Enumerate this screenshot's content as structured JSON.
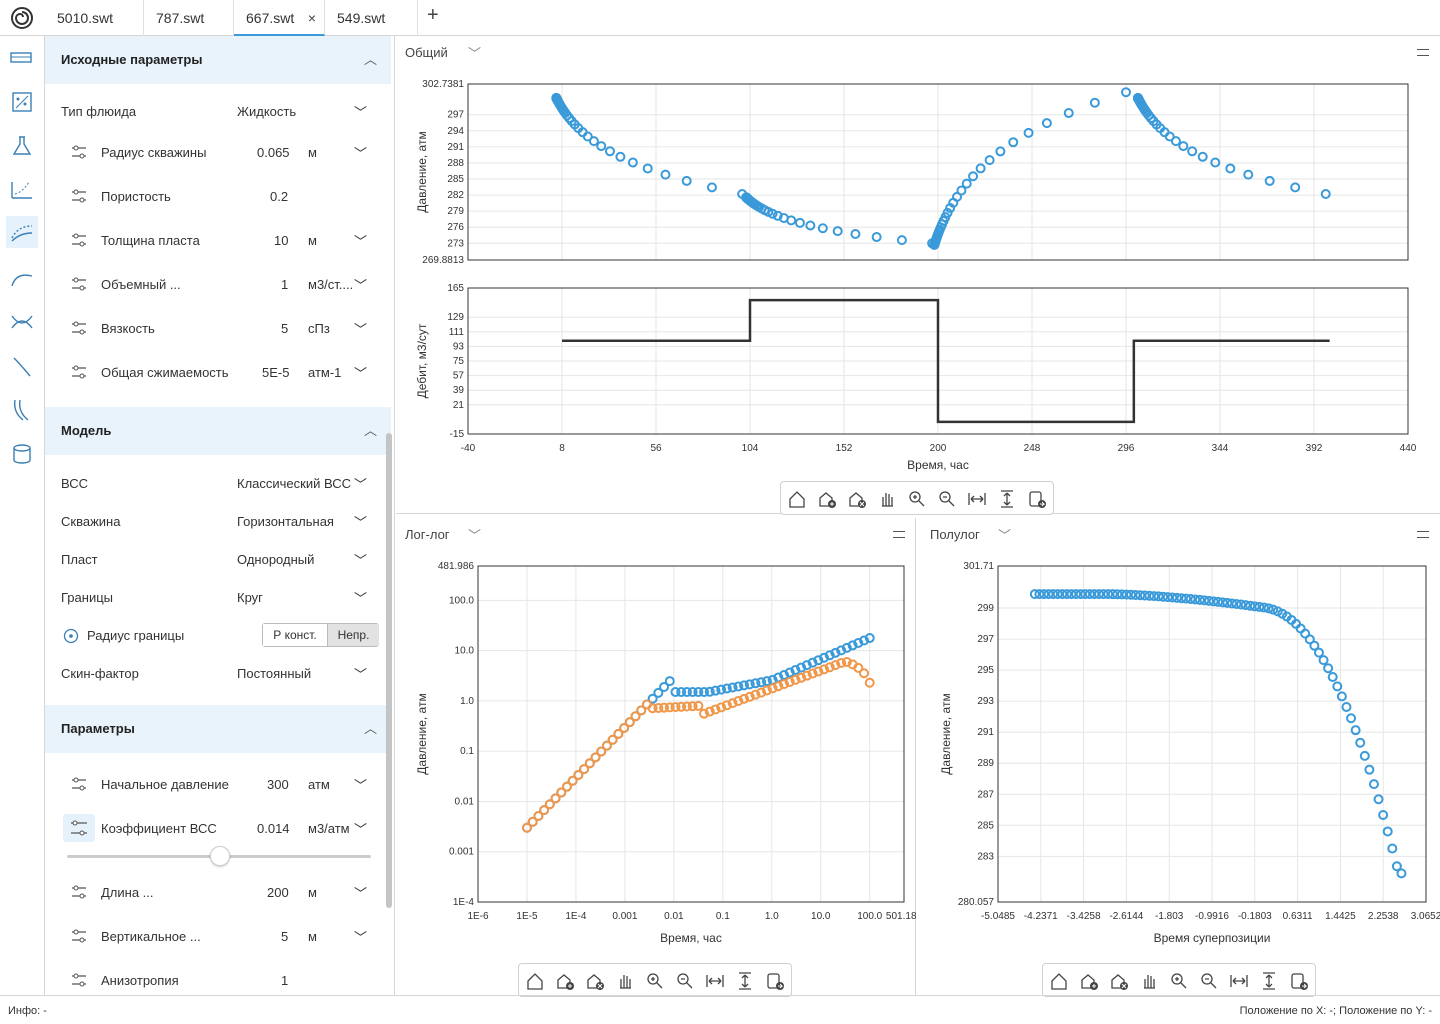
{
  "tabs": [
    {
      "label": "5010.swt"
    },
    {
      "label": "787.swt"
    },
    {
      "label": "667.swt",
      "close": "×"
    },
    {
      "label": "549.swt"
    }
  ],
  "add_tab": "+",
  "sidebar_icons": [
    "tank-icon",
    "grid-icon",
    "flask-icon",
    "scatter-icon",
    "curve-dots-icon",
    "decline-icon",
    "crossing-curves-icon",
    "line-icon",
    "wave-icon",
    "database-icon"
  ],
  "section1": {
    "title": "Исходные параметры",
    "fluid_type": {
      "label": "Тип флюида",
      "value": "Жидкость"
    },
    "rows": [
      {
        "label": "Радиус скважины",
        "value": "0.065",
        "unit": "м"
      },
      {
        "label": "Пористость",
        "value": "0.2",
        "unit": ""
      },
      {
        "label": "Толщина пласта",
        "value": "10",
        "unit": "м"
      },
      {
        "label": "Объемный ...",
        "value": "1",
        "unit": "м3/ст...."
      },
      {
        "label": "Вязкость",
        "value": "5",
        "unit": "сПз"
      },
      {
        "label": "Общая сжимаемость",
        "value": "5E-5",
        "unit": "атм-1"
      }
    ]
  },
  "section2": {
    "title": "Модель",
    "rows": [
      {
        "label": "ВСС",
        "value": "Классический ВСС"
      },
      {
        "label": "Скважина",
        "value": "Горизонтальная"
      },
      {
        "label": "Пласт",
        "value": "Однородный"
      },
      {
        "label": "Границы",
        "value": "Круг"
      }
    ],
    "boundary_radius": {
      "label": "Радиус границы",
      "opt1": "Р конст.",
      "opt2": "Непр."
    },
    "skin": {
      "label": "Скин-фактор",
      "value": "Постоянный"
    }
  },
  "section3": {
    "title": "Параметры",
    "rows": [
      {
        "label": "Начальное давление",
        "value": "300",
        "unit": "атм"
      },
      {
        "label": "Коэффициент ВСС",
        "value": "0.014",
        "unit": "м3/атм"
      },
      {
        "label": "Длина ...",
        "value": "200",
        "unit": "м"
      },
      {
        "label": "Вертикальное ...",
        "value": "5",
        "unit": "м"
      },
      {
        "label": "Анизотропия",
        "value": "1",
        "unit": ""
      }
    ],
    "slider_level": 0.5
  },
  "panels": {
    "general": {
      "title": "Общий"
    },
    "loglog": {
      "title": "Лог-лог"
    },
    "semilog": {
      "title": "Полулог"
    }
  },
  "status": {
    "left": "Инфо: -",
    "right": "Положение по X: -; Положение по Y: -"
  },
  "colors": {
    "blue": "#3a9ad9",
    "orange": "#f0974a",
    "accent": "#3a9ad9"
  },
  "chart_data": [
    {
      "type": "scatter",
      "ylabel": "Давление, атм",
      "ylim": [
        269.8813,
        302.7381
      ],
      "xlim": [
        -40,
        440
      ],
      "yticks": [
        "302.7381",
        "297",
        "294",
        "291",
        "288",
        "285",
        "282",
        "279",
        "276",
        "273",
        "269.8813"
      ],
      "series": [
        {
          "values": "pressure vs time, four buildup/drawdown segments from ~300 down to ~282, ~281 down to ~273, ~272 up to ~301, ~300 down to ~282"
        }
      ]
    },
    {
      "type": "line",
      "xlabel": "Время, час",
      "ylabel": "Дебит, м3/сут",
      "xlim": [
        -40,
        440
      ],
      "ylim": [
        -15,
        165
      ],
      "xticks": [
        "-40",
        "8",
        "56",
        "104",
        "152",
        "200",
        "248",
        "296",
        "344",
        "392",
        "440"
      ],
      "yticks": [
        "165",
        "129",
        "111",
        "93",
        "75",
        "57",
        "39",
        "21",
        "-15"
      ],
      "steps": [
        [
          8,
          100
        ],
        [
          104,
          100
        ],
        [
          104,
          150
        ],
        [
          200,
          150
        ],
        [
          200,
          0
        ],
        [
          300,
          0
        ],
        [
          300,
          100
        ],
        [
          400,
          100
        ]
      ]
    },
    {
      "type": "scatter",
      "xlabel": "Время, час",
      "ylabel": "Давление, атм",
      "xlim": [
        "1E-6",
        "501.187"
      ],
      "ylim": [
        "1E-4",
        "481.986"
      ],
      "xticks": [
        "1E-6",
        "1E-5",
        "1E-4",
        "0.001",
        "0.01",
        "0.1",
        "1.0",
        "10.0",
        "100.0",
        "501.187"
      ],
      "yticks": [
        "481.986",
        "100.0",
        "10.0",
        "1.0",
        "0.1",
        "0.01",
        "0.001",
        "1E-4"
      ]
    },
    {
      "type": "scatter",
      "xlabel": "Время суперпозиции",
      "ylabel": "Давление, атм",
      "xlim": [
        -5.0485,
        3.0652
      ],
      "ylim": [
        280.057,
        301.71
      ],
      "xticks": [
        "-5.0485",
        "-4.2371",
        "-3.4258",
        "-2.6144",
        "-1.803",
        "-0.9916",
        "-0.1803",
        "0.6311",
        "1.4425",
        "2.2538",
        "3.0652"
      ],
      "yticks": [
        "301.71",
        "299",
        "297",
        "295",
        "293",
        "291",
        "289",
        "287",
        "285",
        "283",
        "280.057"
      ]
    }
  ]
}
